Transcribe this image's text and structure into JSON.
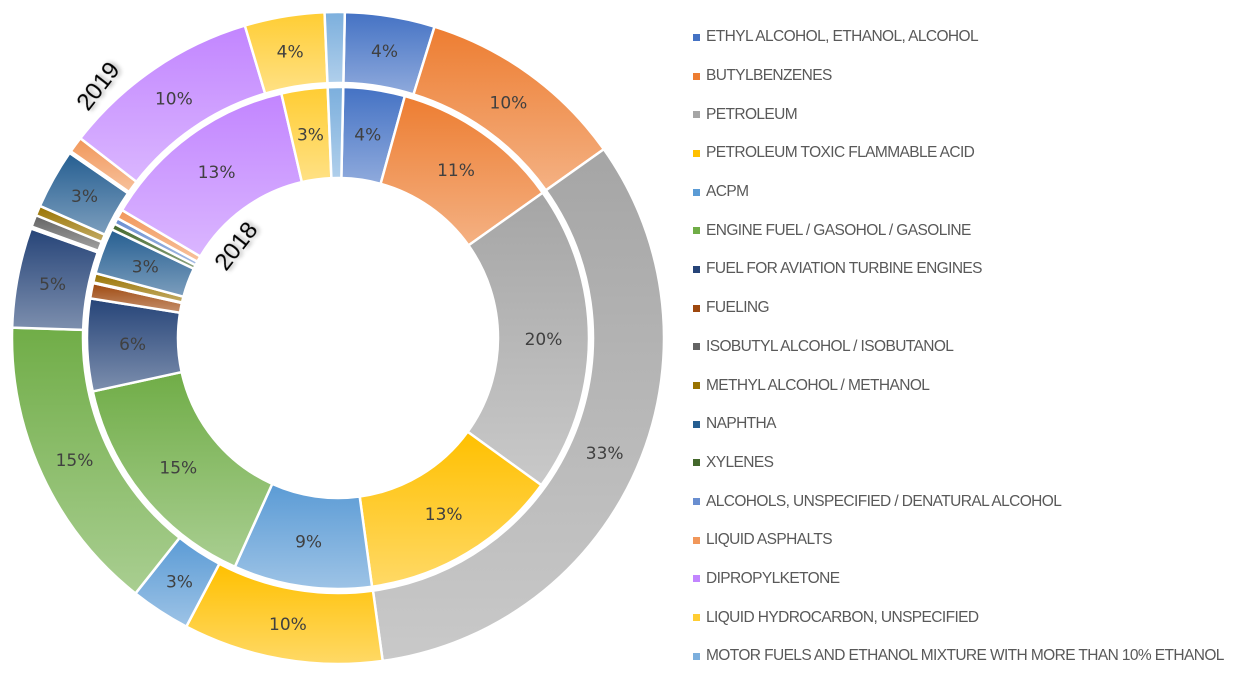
{
  "chart_data": {
    "type": "pie",
    "subtype": "doughnut",
    "title": "",
    "legend_position": "right",
    "ring_labels": {
      "outer": "2019",
      "inner": "2018"
    },
    "categories": [
      "ETHYL ALCOHOL, ETHANOL, ALCOHOL",
      "BUTYLBENZENES",
      "PETROLEUM",
      "PETROLEUM TOXIC FLAMMABLE ACID",
      "ACPM",
      "ENGINE FUEL / GASOHOL / GASOLINE",
      "FUEL FOR AVIATION TURBINE ENGINES",
      "FUELING",
      "ISOBUTYL ALCOHOL / ISOBUTANOL",
      "METHYL ALCOHOL / METHANOL",
      "NAPHTHA",
      "XYLENES",
      "ALCOHOLS, UNSPECIFIED / DENATURAL ALCOHOL",
      "LIQUID ASPHALTS",
      "DIPROPYLKETONE",
      "LIQUID HYDROCARBON, UNSPECIFIED",
      "MOTOR FUELS AND ETHANOL MIXTURE WITH MORE THAN 10% ETHANOL"
    ],
    "colors": [
      "#4472c4",
      "#ed7d31",
      "#a5a5a5",
      "#ffc000",
      "#5b9bd5",
      "#70ad47",
      "#264478",
      "#9e480e",
      "#636363",
      "#997300",
      "#255e91",
      "#43682b",
      "#698ed0",
      "#f1975a",
      "#c285ff",
      "#ffcd33",
      "#7cafdd"
    ],
    "series": [
      {
        "name": "2019",
        "ring": "outer",
        "values": [
          4.5,
          10.5,
          33,
          10,
          3,
          15,
          5,
          0.1,
          0.6,
          0.5,
          3,
          0.05,
          0.05,
          0.8,
          10,
          4,
          1
        ],
        "labels": [
          "4%",
          "10%",
          "33%",
          "10%",
          "3%",
          "15%",
          "5%",
          "",
          "",
          "",
          "3%",
          "",
          "",
          "",
          "10%",
          "4%",
          ""
        ]
      },
      {
        "name": "2018",
        "ring": "inner",
        "values": [
          4,
          11,
          20,
          13,
          9,
          15,
          6,
          1,
          0.05,
          0.6,
          3,
          0.4,
          0.4,
          0.6,
          13,
          3,
          1
        ],
        "labels": [
          "4%",
          "11%",
          "20%",
          "13%",
          "9%",
          "15%",
          "6%",
          "",
          "",
          "",
          "3%",
          "",
          "",
          "",
          "13%",
          "3%",
          ""
        ]
      }
    ]
  }
}
